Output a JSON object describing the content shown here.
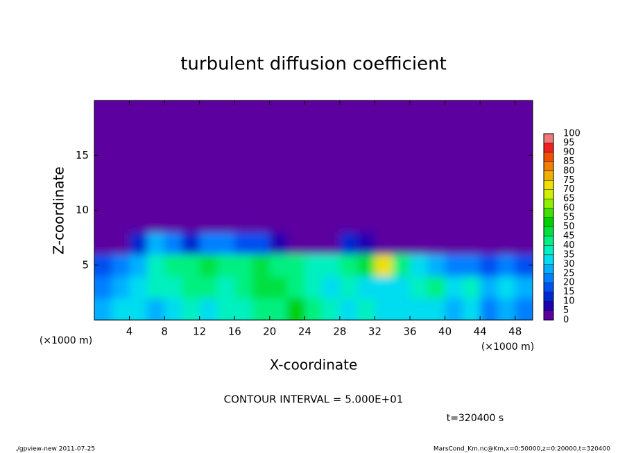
{
  "chart_data": {
    "type": "heatmap",
    "title": "turbulent diffusion coefficient",
    "x_label": "X-coordinate",
    "y_label": "Z-coordinate",
    "x_unit": "(×1000 m)",
    "y_unit": "(×1000 m)",
    "contour_note": "CONTOUR INTERVAL = 5.000E+01",
    "time_note": "t=320400 s",
    "footer_left": "./gpview-new  2011-07-25",
    "footer_right": "MarsCond_Km.nc@Km,x=0:50000,z=0:20000,t=320400",
    "xlim": [
      0,
      50
    ],
    "ylim": [
      0,
      20
    ],
    "xticks": [
      4,
      8,
      12,
      16,
      20,
      24,
      28,
      32,
      36,
      40,
      44,
      48
    ],
    "yticks": [
      5,
      10,
      15
    ],
    "x": [
      1,
      3,
      5,
      7,
      9,
      11,
      13,
      15,
      17,
      19,
      21,
      23,
      25,
      27,
      29,
      31,
      33,
      35,
      37,
      39,
      41,
      43,
      45,
      47,
      49
    ],
    "z": [
      1,
      3,
      5,
      7,
      9,
      11,
      13,
      15,
      17,
      19
    ],
    "values": [
      [
        25,
        30,
        30,
        25,
        30,
        35,
        30,
        35,
        35,
        40,
        40,
        50,
        40,
        35,
        30,
        35,
        30,
        30,
        30,
        30,
        25,
        30,
        20,
        25,
        20
      ],
      [
        20,
        25,
        30,
        35,
        35,
        40,
        40,
        35,
        40,
        45,
        45,
        40,
        35,
        30,
        35,
        30,
        30,
        30,
        35,
        40,
        30,
        35,
        25,
        30,
        25
      ],
      [
        15,
        20,
        25,
        35,
        40,
        40,
        45,
        40,
        40,
        45,
        40,
        40,
        35,
        35,
        40,
        45,
        70,
        40,
        30,
        25,
        20,
        20,
        15,
        20,
        15
      ],
      [
        0,
        0,
        10,
        25,
        20,
        10,
        20,
        20,
        15,
        15,
        5,
        0,
        0,
        0,
        10,
        5,
        0,
        0,
        0,
        0,
        0,
        0,
        0,
        0,
        0
      ],
      [
        0,
        0,
        0,
        0,
        0,
        0,
        0,
        0,
        0,
        0,
        0,
        0,
        0,
        0,
        0,
        0,
        0,
        0,
        0,
        0,
        0,
        0,
        0,
        0,
        0
      ],
      [
        0,
        0,
        0,
        0,
        0,
        0,
        0,
        0,
        0,
        0,
        0,
        0,
        0,
        0,
        0,
        0,
        0,
        0,
        0,
        0,
        0,
        0,
        0,
        0,
        0
      ],
      [
        0,
        0,
        0,
        0,
        0,
        0,
        0,
        0,
        0,
        0,
        0,
        0,
        0,
        0,
        0,
        0,
        0,
        0,
        0,
        0,
        0,
        0,
        0,
        0,
        0
      ],
      [
        0,
        0,
        0,
        0,
        0,
        0,
        0,
        0,
        0,
        0,
        0,
        0,
        0,
        0,
        0,
        0,
        0,
        0,
        0,
        0,
        0,
        0,
        0,
        0,
        0
      ],
      [
        0,
        0,
        0,
        0,
        0,
        0,
        0,
        0,
        0,
        0,
        0,
        0,
        0,
        0,
        0,
        0,
        0,
        0,
        0,
        0,
        0,
        0,
        0,
        0,
        0
      ],
      [
        0,
        0,
        0,
        0,
        0,
        0,
        0,
        0,
        0,
        0,
        0,
        0,
        0,
        0,
        0,
        0,
        0,
        0,
        0,
        0,
        0,
        0,
        0,
        0,
        0
      ]
    ],
    "levels": [
      0,
      5,
      10,
      15,
      20,
      25,
      30,
      35,
      40,
      45,
      50,
      55,
      60,
      65,
      70,
      75,
      80,
      85,
      90,
      95,
      100
    ],
    "colors": [
      "#5c00a0",
      "#2000b0",
      "#0028d0",
      "#0050f0",
      "#0080ff",
      "#00b0ff",
      "#00dcf0",
      "#00f0c0",
      "#00f080",
      "#00e040",
      "#00d000",
      "#40e000",
      "#90f000",
      "#d0f000",
      "#f0e000",
      "#f0b000",
      "#f08000",
      "#f05000",
      "#f02020",
      "#f07878"
    ]
  }
}
